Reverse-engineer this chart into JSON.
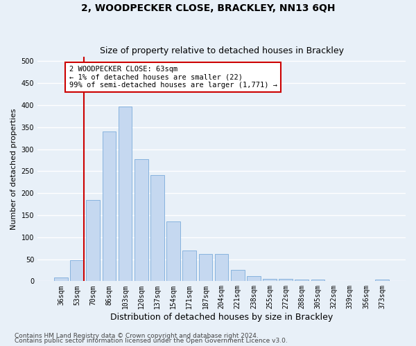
{
  "title": "2, WOODPECKER CLOSE, BRACKLEY, NN13 6QH",
  "subtitle": "Size of property relative to detached houses in Brackley",
  "xlabel": "Distribution of detached houses by size in Brackley",
  "ylabel": "Number of detached properties",
  "categories": [
    "36sqm",
    "53sqm",
    "70sqm",
    "86sqm",
    "103sqm",
    "120sqm",
    "137sqm",
    "154sqm",
    "171sqm",
    "187sqm",
    "204sqm",
    "221sqm",
    "238sqm",
    "255sqm",
    "272sqm",
    "288sqm",
    "305sqm",
    "322sqm",
    "339sqm",
    "356sqm",
    "373sqm"
  ],
  "values": [
    8,
    48,
    185,
    340,
    397,
    278,
    241,
    135,
    70,
    62,
    62,
    25,
    12,
    6,
    5,
    4,
    4,
    0,
    0,
    0,
    3
  ],
  "bar_color": "#c5d8f0",
  "bar_edge_color": "#7aabdb",
  "vline_color": "#cc0000",
  "vline_x": 1.425,
  "annotation_text": "2 WOODPECKER CLOSE: 63sqm\n← 1% of detached houses are smaller (22)\n99% of semi-detached houses are larger (1,771) →",
  "annotation_box_edge": "#cc0000",
  "ylim": [
    0,
    510
  ],
  "yticks": [
    0,
    50,
    100,
    150,
    200,
    250,
    300,
    350,
    400,
    450,
    500
  ],
  "bg_color": "#e8f0f8",
  "grid_color": "#ffffff",
  "footer1": "Contains HM Land Registry data © Crown copyright and database right 2024.",
  "footer2": "Contains public sector information licensed under the Open Government Licence v3.0.",
  "title_fontsize": 10,
  "subtitle_fontsize": 9,
  "xlabel_fontsize": 9,
  "ylabel_fontsize": 8,
  "tick_fontsize": 7,
  "annotation_fontsize": 7.5,
  "footer_fontsize": 6.5
}
